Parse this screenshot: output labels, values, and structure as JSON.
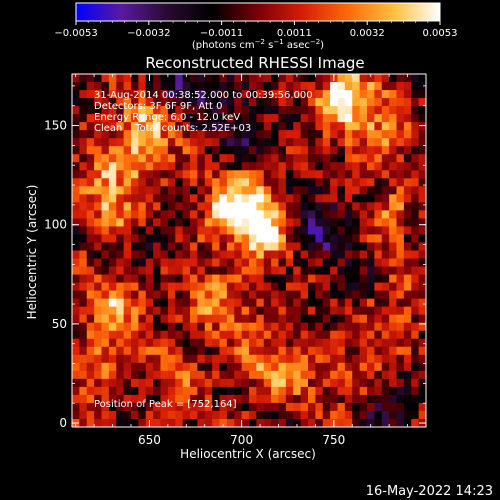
{
  "chart_data": {
    "type": "heatmap",
    "title": "Reconstructed RHESSI Image",
    "xlabel": "Heliocentric X (arcsec)",
    "ylabel": "Heliocentric Y (arcsec)",
    "xlim": [
      608,
      800
    ],
    "ylim": [
      -2,
      176
    ],
    "xticks": [
      650,
      700,
      750
    ],
    "yticks": [
      0,
      50,
      100,
      150
    ],
    "grid": false,
    "annotations": [
      "31-Aug-2014 00:38:52.000 to 00:39:56.000",
      "Detectors: 3F 6F 9F, Att 0",
      "Energy Range: 6.0 - 12.0 keV",
      "Clean    Total counts: 2.52E+03"
    ],
    "peak_label": "Position of Peak = [752,164]",
    "peak": {
      "x": 752,
      "y": 164
    },
    "colorbar": {
      "min": -0.0053,
      "max": 0.0053,
      "tick_labels": [
        "−0.0053",
        "−0.0032",
        "−0.0011",
        "0.0011",
        "0.0032",
        "0.0053"
      ],
      "unit_parts": [
        "(photons cm",
        "−2",
        " s",
        "−1",
        " asec",
        "−2",
        ")"
      ],
      "colors": [
        "#0000ff",
        "#5a1aa0",
        "#2a0a30",
        "#000000",
        "#7a0008",
        "#d81e06",
        "#ff6c0a",
        "#ffc040",
        "#ffffff"
      ]
    },
    "grid_shape": {
      "cols": 48,
      "rows": 44
    },
    "hotspots": [
      {
        "x": 700,
        "y": 108,
        "amp": 0.0056,
        "sx": 14,
        "sy": 12
      },
      {
        "x": 713,
        "y": 96,
        "amp": 0.0034,
        "sx": 9,
        "sy": 9
      },
      {
        "x": 752,
        "y": 162,
        "amp": 0.0052,
        "sx": 8,
        "sy": 9
      },
      {
        "x": 770,
        "y": 152,
        "amp": 0.0026,
        "sx": 14,
        "sy": 20
      },
      {
        "x": 645,
        "y": 142,
        "amp": 0.0038,
        "sx": 12,
        "sy": 16
      },
      {
        "x": 627,
        "y": 112,
        "amp": 0.003,
        "sx": 10,
        "sy": 15
      },
      {
        "x": 632,
        "y": 60,
        "amp": 0.0028,
        "sx": 12,
        "sy": 13
      },
      {
        "x": 622,
        "y": 30,
        "amp": 0.0025,
        "sx": 10,
        "sy": 11
      },
      {
        "x": 690,
        "y": 60,
        "amp": 0.0024,
        "sx": 16,
        "sy": 13
      },
      {
        "x": 720,
        "y": 28,
        "amp": 0.003,
        "sx": 15,
        "sy": 10
      },
      {
        "x": 782,
        "y": 105,
        "amp": 0.0024,
        "sx": 8,
        "sy": 11
      },
      {
        "x": 785,
        "y": 55,
        "amp": 0.0022,
        "sx": 9,
        "sy": 12
      },
      {
        "x": 760,
        "y": 20,
        "amp": 0.002,
        "sx": 12,
        "sy": 10
      },
      {
        "x": 665,
        "y": 25,
        "amp": 0.0016,
        "sx": 12,
        "sy": 10
      },
      {
        "x": 745,
        "y": 100,
        "amp": -0.0022,
        "sx": 14,
        "sy": 16
      },
      {
        "x": 670,
        "y": 170,
        "amp": -0.0024,
        "sx": 15,
        "sy": 9
      },
      {
        "x": 700,
        "y": 150,
        "amp": -0.0016,
        "sx": 12,
        "sy": 12
      },
      {
        "x": 780,
        "y": 10,
        "amp": -0.002,
        "sx": 11,
        "sy": 10
      },
      {
        "x": 650,
        "y": 85,
        "amp": -0.0012,
        "sx": 10,
        "sy": 10
      }
    ]
  },
  "footer": {
    "timestamp": "16-May-2022 14:23"
  }
}
